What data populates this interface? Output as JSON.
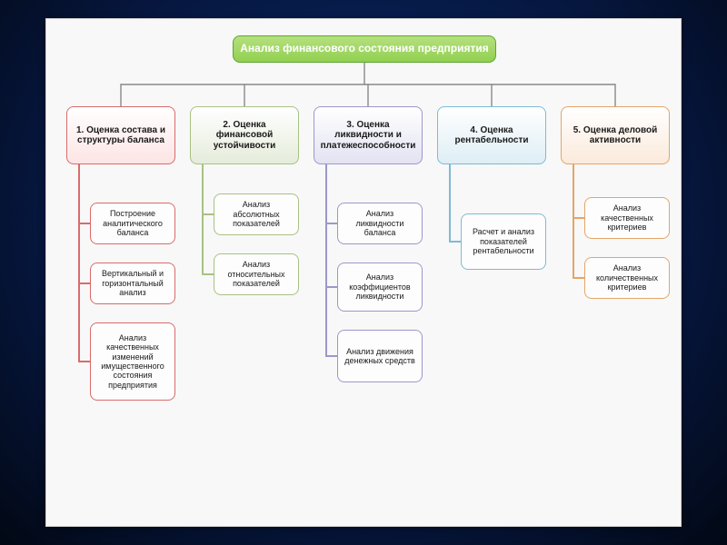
{
  "background": {
    "outer_gradient_center": "#0a2a6a",
    "outer_gradient_edge": "#020814",
    "canvas": "#f8f8f8"
  },
  "connectors": {
    "color": "#777777",
    "width": 1.4
  },
  "root": {
    "label": "Анализ финансового состояния предприятия",
    "fill": "#92d050",
    "border": "#5aa82c",
    "text_color": "#ffffff"
  },
  "categories": [
    {
      "label": "1. Оценка состава и структуры баланса",
      "fill": "#fde4e4",
      "border": "#d86b6b",
      "line": "#d86b6b"
    },
    {
      "label": "2. Оценка финансовой устойчивости",
      "fill": "#e5ecdb",
      "border": "#a9c183",
      "line": "#a9c183"
    },
    {
      "label": "3. Оценка ликвидности и платежеспособности",
      "fill": "#e3e2f2",
      "border": "#9b98c9",
      "line": "#9b98c9"
    },
    {
      "label": "4. Оценка рентабельности",
      "fill": "#deeef5",
      "border": "#7dbbd3",
      "line": "#7dbbd3"
    },
    {
      "label": "5. Оценка деловой активности",
      "fill": "#fbeadb",
      "border": "#e3a569",
      "line": "#e3a569"
    }
  ],
  "subitems": {
    "col1": [
      "Построение аналитического баланса",
      "Вертикальный и горизонтальный анализ",
      "Анализ качественных изменений имущественного состояния предприятия"
    ],
    "col2": [
      "Анализ абсолютных показателей",
      "Анализ относительных показателей"
    ],
    "col3": [
      "Анализ ликвидности баланса",
      "Анализ коэффициентов ликвидности",
      "Анализ движения денежных средств"
    ],
    "col4": [
      "Расчет и анализ показателей рентабельности"
    ],
    "col5": [
      "Анализ качественных критериев",
      "Анализ количественных критериев"
    ]
  },
  "style": {
    "node_radius": 8,
    "sub_fill": "#fdfdfd",
    "cat_fontsize": 10,
    "sub_fontsize": 9,
    "root_fontsize": 12
  }
}
